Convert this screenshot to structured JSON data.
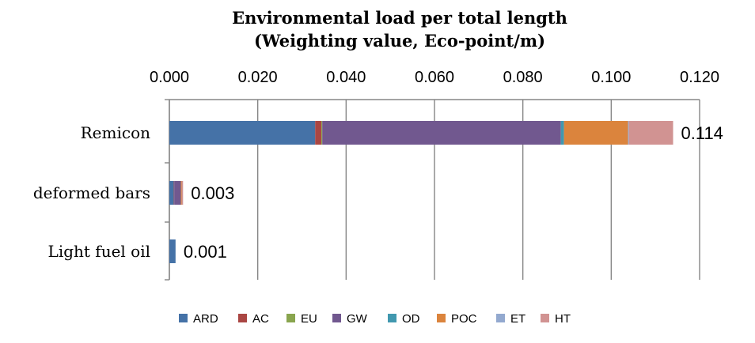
{
  "chart_data": {
    "type": "bar",
    "orientation": "horizontal",
    "stacked": true,
    "title": "Environmental load per total length",
    "subtitle": "(Weighting value, Eco-point/m)",
    "xlim": [
      0,
      0.12
    ],
    "xticks": [
      "0.000",
      "0.020",
      "0.040",
      "0.060",
      "0.080",
      "0.100",
      "0.120"
    ],
    "x_axis_position": "top",
    "grid": true,
    "legend_position": "bottom",
    "categories": [
      "Remicon",
      "deformed bars",
      "Light fuel oil"
    ],
    "totals": [
      "0.114",
      "0.003",
      "0.001"
    ],
    "series": [
      {
        "name": "ARD",
        "color": "#4572a7",
        "values": [
          0.033,
          0.001,
          0.0014
        ]
      },
      {
        "name": "AC",
        "color": "#aa4643",
        "values": [
          0.0014,
          0.0001,
          0.0
        ]
      },
      {
        "name": "EU",
        "color": "#89a54e",
        "values": [
          0.0002,
          0.0,
          0.0
        ]
      },
      {
        "name": "GW",
        "color": "#71588f",
        "values": [
          0.054,
          0.0015,
          0.0
        ]
      },
      {
        "name": "OD",
        "color": "#4198af",
        "values": [
          0.0007,
          0.0,
          0.0
        ]
      },
      {
        "name": "POC",
        "color": "#db843d",
        "values": [
          0.0145,
          0.0002,
          0.0
        ]
      },
      {
        "name": "ET",
        "color": "#93a9cf",
        "values": [
          0.0002,
          0.0,
          0.0
        ]
      },
      {
        "name": "HT",
        "color": "#d19392",
        "values": [
          0.01,
          0.0003,
          0.0
        ]
      }
    ]
  }
}
